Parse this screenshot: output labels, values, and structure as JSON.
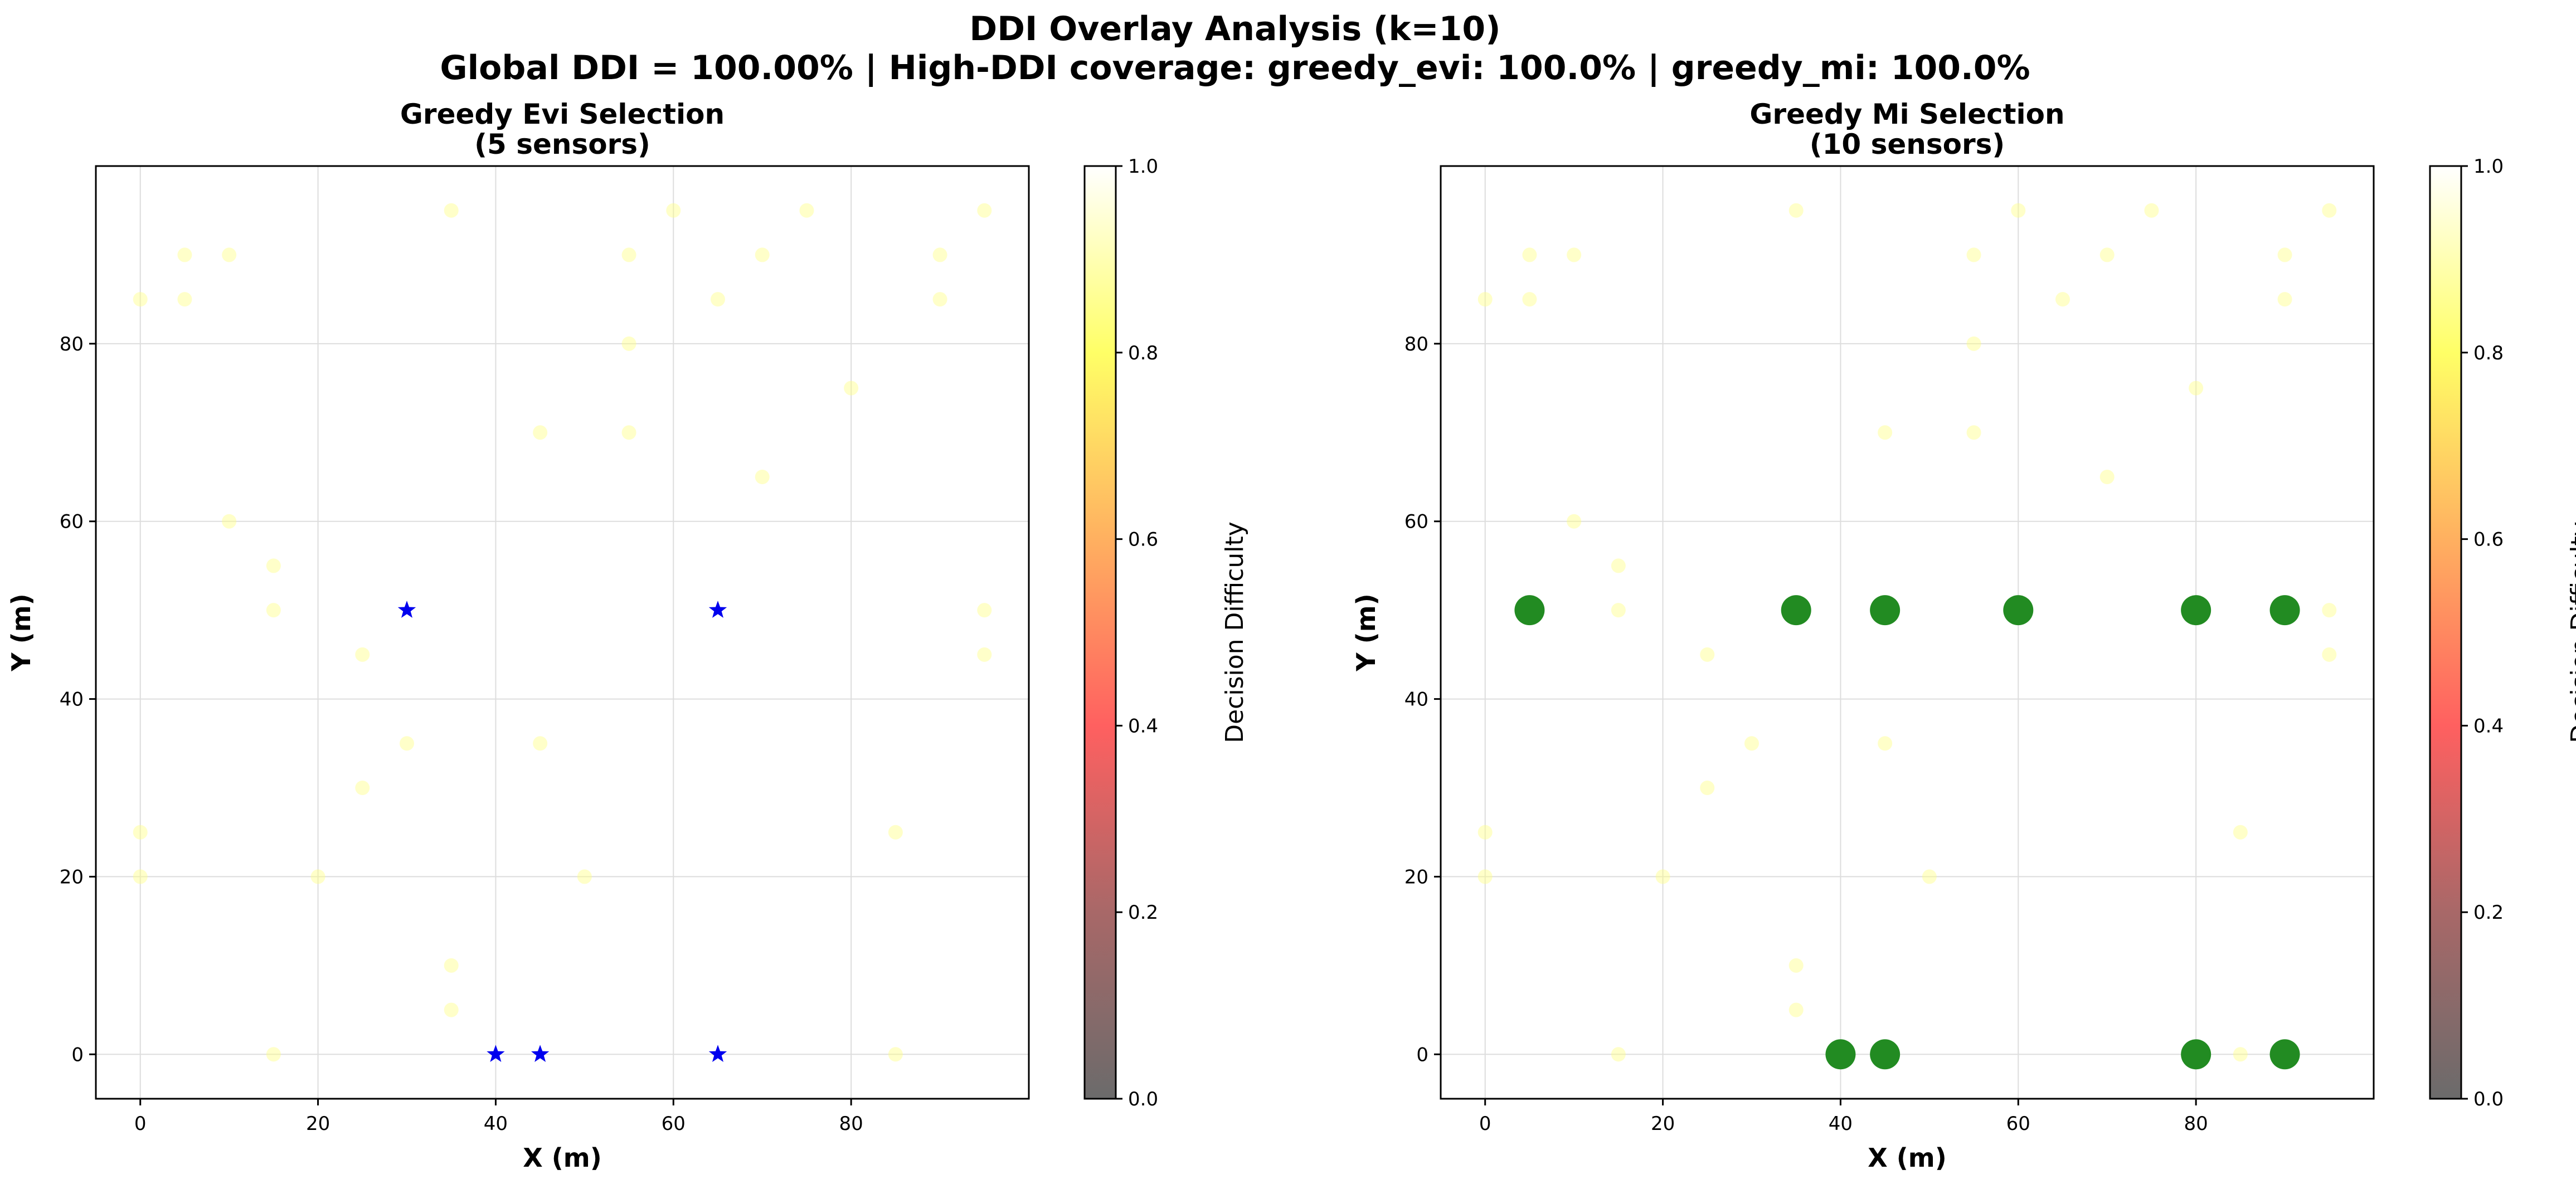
{
  "figure": {
    "title_line1": "DDI Overlay Analysis (k=10)",
    "title_line2": "Global DDI = 100.00% | High-DDI coverage: greedy_evi: 100.0% | greedy_mi: 100.0%"
  },
  "chart_data": [
    {
      "type": "scatter",
      "title_line1": "Greedy Evi Selection",
      "title_line2": "(5 sensors)",
      "xlabel": "X (m)",
      "ylabel": "Y (m)",
      "xlim": [
        -5,
        100
      ],
      "ylim": [
        -5,
        100
      ],
      "xticks": [
        0,
        20,
        40,
        60,
        80
      ],
      "yticks": [
        0,
        20,
        40,
        60,
        80
      ],
      "grid": true,
      "colorbar": {
        "label": "Decision Difficulty",
        "min": 0.0,
        "max": 1.0,
        "ticks": [
          "0.0",
          "0.2",
          "0.4",
          "0.6",
          "0.8",
          "1.0"
        ],
        "colormap": [
          "#6b6b6b",
          "#a86868",
          "#ff6060",
          "#ffb060",
          "#ffff66",
          "#ffffff"
        ]
      },
      "background_points": [
        {
          "x": 0,
          "y": 20
        },
        {
          "x": 0,
          "y": 25
        },
        {
          "x": 15,
          "y": 50
        },
        {
          "x": 15,
          "y": 55
        },
        {
          "x": 25,
          "y": 45
        },
        {
          "x": 35,
          "y": 10
        },
        {
          "x": 50,
          "y": 20
        },
        {
          "x": 55,
          "y": 80
        },
        {
          "x": 70,
          "y": 65
        },
        {
          "x": 70,
          "y": 90
        },
        {
          "x": 90,
          "y": 85
        },
        {
          "x": 95,
          "y": 50
        },
        {
          "x": 95,
          "y": 45
        },
        {
          "x": 15,
          "y": 0
        },
        {
          "x": 85,
          "y": 0
        },
        {
          "x": 5,
          "y": 90
        },
        {
          "x": 10,
          "y": 90
        },
        {
          "x": 35,
          "y": 95
        },
        {
          "x": 55,
          "y": 90
        },
        {
          "x": 60,
          "y": 95
        },
        {
          "x": 80,
          "y": 75
        },
        {
          "x": 45,
          "y": 70
        },
        {
          "x": 55,
          "y": 70
        },
        {
          "x": 30,
          "y": 35
        },
        {
          "x": 45,
          "y": 35
        },
        {
          "x": 25,
          "y": 30
        },
        {
          "x": 35,
          "y": 5
        },
        {
          "x": 20,
          "y": 20
        },
        {
          "x": 10,
          "y": 60
        },
        {
          "x": 0,
          "y": 85
        },
        {
          "x": 5,
          "y": 85
        },
        {
          "x": 75,
          "y": 95
        },
        {
          "x": 90,
          "y": 90
        },
        {
          "x": 95,
          "y": 95
        },
        {
          "x": 65,
          "y": 85
        },
        {
          "x": 85,
          "y": 25
        }
      ],
      "selected_marker": "star",
      "selected_color": "#0000ee",
      "selected": [
        {
          "x": 30,
          "y": 50
        },
        {
          "x": 65,
          "y": 50
        },
        {
          "x": 40,
          "y": 0
        },
        {
          "x": 45,
          "y": 0
        },
        {
          "x": 65,
          "y": 0
        }
      ]
    },
    {
      "type": "scatter",
      "title_line1": "Greedy Mi Selection",
      "title_line2": "(10 sensors)",
      "xlabel": "X (m)",
      "ylabel": "Y (m)",
      "xlim": [
        -5,
        100
      ],
      "ylim": [
        -5,
        100
      ],
      "xticks": [
        0,
        20,
        40,
        60,
        80
      ],
      "yticks": [
        0,
        20,
        40,
        60,
        80
      ],
      "grid": true,
      "colorbar": {
        "label": "Decision Difficulty",
        "min": 0.0,
        "max": 1.0,
        "ticks": [
          "0.0",
          "0.2",
          "0.4",
          "0.6",
          "0.8",
          "1.0"
        ],
        "colormap": [
          "#6b6b6b",
          "#a86868",
          "#ff6060",
          "#ffb060",
          "#ffff66",
          "#ffffff"
        ]
      },
      "background_points": [
        {
          "x": 0,
          "y": 20
        },
        {
          "x": 0,
          "y": 25
        },
        {
          "x": 15,
          "y": 50
        },
        {
          "x": 15,
          "y": 55
        },
        {
          "x": 25,
          "y": 45
        },
        {
          "x": 35,
          "y": 10
        },
        {
          "x": 50,
          "y": 20
        },
        {
          "x": 55,
          "y": 80
        },
        {
          "x": 70,
          "y": 65
        },
        {
          "x": 70,
          "y": 90
        },
        {
          "x": 90,
          "y": 85
        },
        {
          "x": 95,
          "y": 50
        },
        {
          "x": 95,
          "y": 45
        },
        {
          "x": 15,
          "y": 0
        },
        {
          "x": 85,
          "y": 0
        },
        {
          "x": 5,
          "y": 90
        },
        {
          "x": 10,
          "y": 90
        },
        {
          "x": 35,
          "y": 95
        },
        {
          "x": 55,
          "y": 90
        },
        {
          "x": 60,
          "y": 95
        },
        {
          "x": 80,
          "y": 75
        },
        {
          "x": 45,
          "y": 70
        },
        {
          "x": 55,
          "y": 70
        },
        {
          "x": 30,
          "y": 35
        },
        {
          "x": 45,
          "y": 35
        },
        {
          "x": 25,
          "y": 30
        },
        {
          "x": 35,
          "y": 5
        },
        {
          "x": 20,
          "y": 20
        },
        {
          "x": 10,
          "y": 60
        },
        {
          "x": 0,
          "y": 85
        },
        {
          "x": 5,
          "y": 85
        },
        {
          "x": 75,
          "y": 95
        },
        {
          "x": 90,
          "y": 90
        },
        {
          "x": 95,
          "y": 95
        },
        {
          "x": 65,
          "y": 85
        },
        {
          "x": 85,
          "y": 25
        }
      ],
      "selected_marker": "circle",
      "selected_color": "#228b22",
      "selected": [
        {
          "x": 5,
          "y": 50
        },
        {
          "x": 35,
          "y": 50
        },
        {
          "x": 45,
          "y": 50
        },
        {
          "x": 60,
          "y": 50
        },
        {
          "x": 80,
          "y": 50
        },
        {
          "x": 90,
          "y": 50
        },
        {
          "x": 40,
          "y": 0
        },
        {
          "x": 45,
          "y": 0
        },
        {
          "x": 80,
          "y": 0
        },
        {
          "x": 90,
          "y": 0
        }
      ]
    }
  ]
}
